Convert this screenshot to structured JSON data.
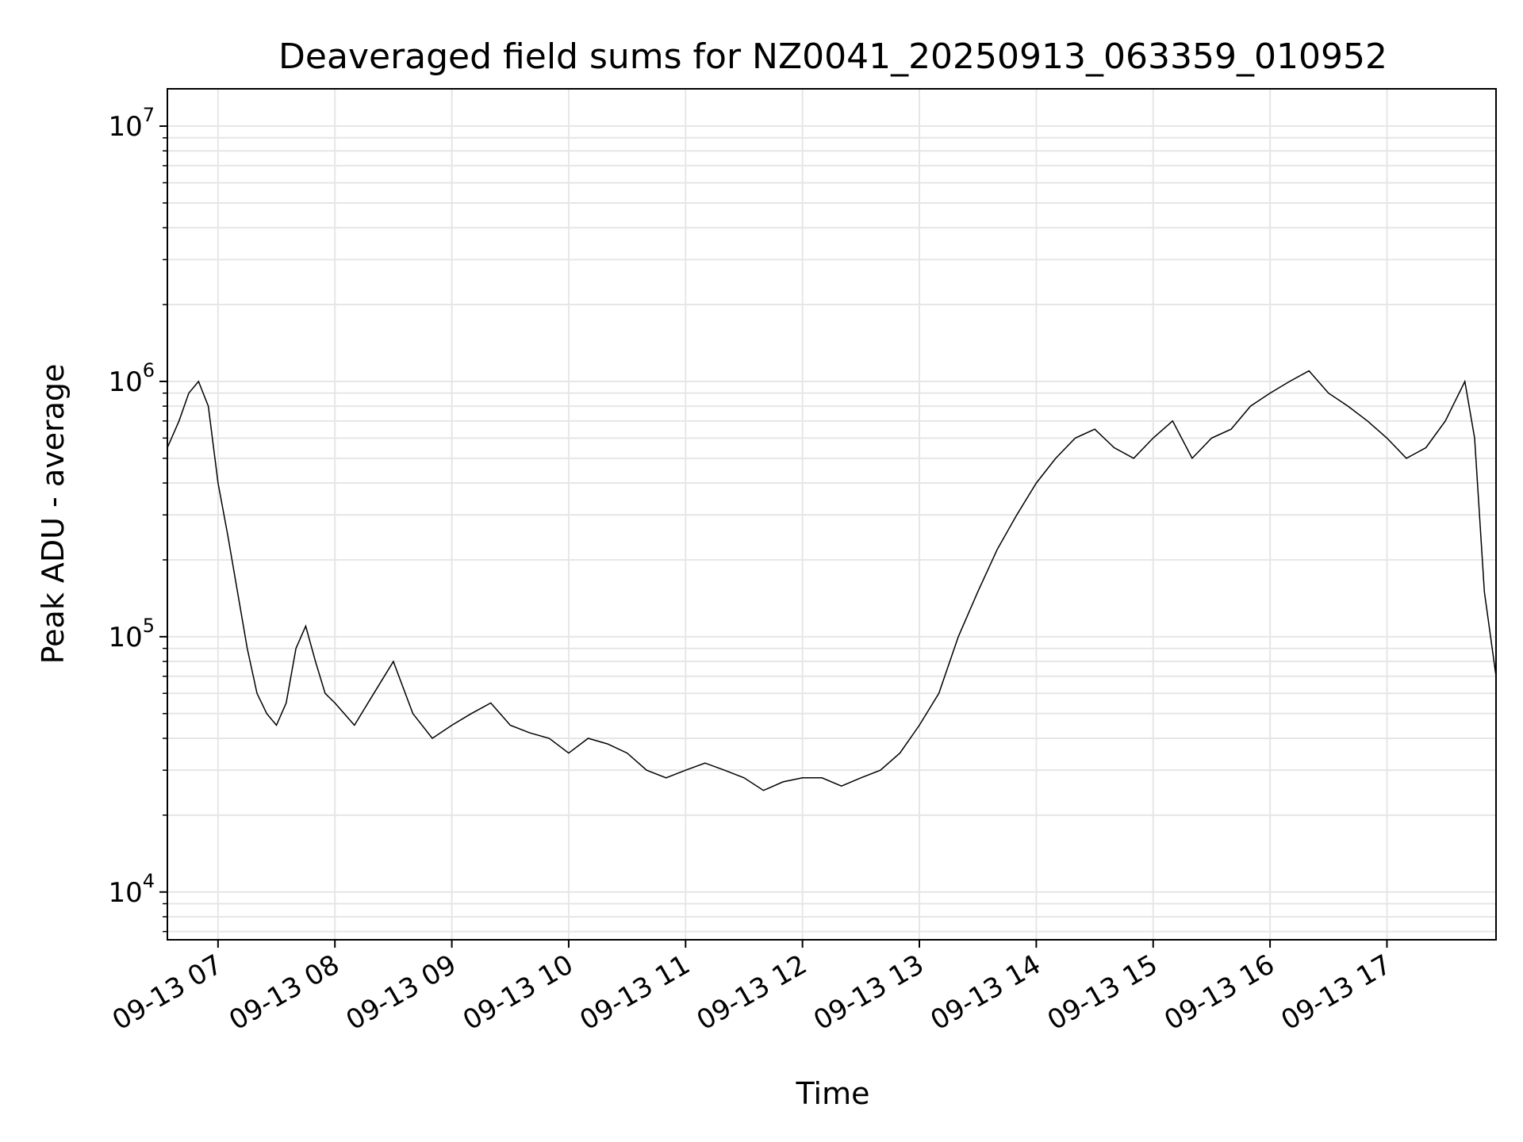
{
  "chart_data": {
    "type": "line",
    "title": "Deaveraged field sums for NZ0041_20250913_063359_010952",
    "xlabel": "Time",
    "ylabel": "Peak ADU - average",
    "yscale": "log",
    "ylim": [
      6500,
      14000000
    ],
    "xlim": [
      "2025-09-13 06:34",
      "2025-09-13 17:56"
    ],
    "grid": true,
    "line_color": "#000000",
    "x_ticks": [
      {
        "t": "2025-09-13 07:00",
        "label": "09-13 07"
      },
      {
        "t": "2025-09-13 08:00",
        "label": "09-13 08"
      },
      {
        "t": "2025-09-13 09:00",
        "label": "09-13 09"
      },
      {
        "t": "2025-09-13 10:00",
        "label": "09-13 10"
      },
      {
        "t": "2025-09-13 11:00",
        "label": "09-13 11"
      },
      {
        "t": "2025-09-13 12:00",
        "label": "09-13 12"
      },
      {
        "t": "2025-09-13 13:00",
        "label": "09-13 13"
      },
      {
        "t": "2025-09-13 14:00",
        "label": "09-13 14"
      },
      {
        "t": "2025-09-13 15:00",
        "label": "09-13 15"
      },
      {
        "t": "2025-09-13 16:00",
        "label": "09-13 16"
      },
      {
        "t": "2025-09-13 17:00",
        "label": "09-13 17"
      }
    ],
    "y_ticks": [
      {
        "value": 10000,
        "base": "10",
        "exp": "4"
      },
      {
        "value": 100000,
        "base": "10",
        "exp": "5"
      },
      {
        "value": 1000000,
        "base": "10",
        "exp": "6"
      },
      {
        "value": 10000000,
        "base": "10",
        "exp": "7"
      }
    ],
    "series": [
      {
        "x": [
          "2025-09-13 06:34",
          "2025-09-13 06:40",
          "2025-09-13 06:45",
          "2025-09-13 06:50",
          "2025-09-13 06:55",
          "2025-09-13 07:00",
          "2025-09-13 07:05",
          "2025-09-13 07:10",
          "2025-09-13 07:15",
          "2025-09-13 07:20",
          "2025-09-13 07:25",
          "2025-09-13 07:30",
          "2025-09-13 07:35",
          "2025-09-13 07:40",
          "2025-09-13 07:45",
          "2025-09-13 07:50",
          "2025-09-13 07:55",
          "2025-09-13 08:00",
          "2025-09-13 08:10",
          "2025-09-13 08:20",
          "2025-09-13 08:30",
          "2025-09-13 08:40",
          "2025-09-13 08:50",
          "2025-09-13 09:00",
          "2025-09-13 09:10",
          "2025-09-13 09:20",
          "2025-09-13 09:30",
          "2025-09-13 09:40",
          "2025-09-13 09:50",
          "2025-09-13 10:00",
          "2025-09-13 10:10",
          "2025-09-13 10:20",
          "2025-09-13 10:30",
          "2025-09-13 10:40",
          "2025-09-13 10:50",
          "2025-09-13 11:00",
          "2025-09-13 11:10",
          "2025-09-13 11:20",
          "2025-09-13 11:30",
          "2025-09-13 11:40",
          "2025-09-13 11:50",
          "2025-09-13 12:00",
          "2025-09-13 12:10",
          "2025-09-13 12:20",
          "2025-09-13 12:30",
          "2025-09-13 12:40",
          "2025-09-13 12:50",
          "2025-09-13 13:00",
          "2025-09-13 13:10",
          "2025-09-13 13:20",
          "2025-09-13 13:30",
          "2025-09-13 13:40",
          "2025-09-13 13:50",
          "2025-09-13 14:00",
          "2025-09-13 14:10",
          "2025-09-13 14:20",
          "2025-09-13 14:30",
          "2025-09-13 14:40",
          "2025-09-13 14:50",
          "2025-09-13 15:00",
          "2025-09-13 15:10",
          "2025-09-13 15:20",
          "2025-09-13 15:30",
          "2025-09-13 15:40",
          "2025-09-13 15:50",
          "2025-09-13 16:00",
          "2025-09-13 16:10",
          "2025-09-13 16:20",
          "2025-09-13 16:30",
          "2025-09-13 16:40",
          "2025-09-13 16:50",
          "2025-09-13 17:00",
          "2025-09-13 17:10",
          "2025-09-13 17:20",
          "2025-09-13 17:30",
          "2025-09-13 17:40",
          "2025-09-13 17:45",
          "2025-09-13 17:50",
          "2025-09-13 17:56"
        ],
        "y": [
          550000,
          700000,
          900000,
          1000000,
          800000,
          400000,
          250000,
          150000,
          90000,
          60000,
          50000,
          45000,
          55000,
          90000,
          110000,
          80000,
          60000,
          55000,
          45000,
          60000,
          80000,
          50000,
          40000,
          45000,
          50000,
          55000,
          45000,
          42000,
          40000,
          35000,
          40000,
          38000,
          35000,
          30000,
          28000,
          30000,
          32000,
          30000,
          28000,
          25000,
          27000,
          28000,
          28000,
          26000,
          28000,
          30000,
          35000,
          45000,
          60000,
          100000,
          150000,
          220000,
          300000,
          400000,
          500000,
          600000,
          650000,
          550000,
          500000,
          600000,
          700000,
          500000,
          600000,
          650000,
          800000,
          900000,
          1000000,
          1100000,
          900000,
          800000,
          700000,
          600000,
          500000,
          550000,
          700000,
          1000000,
          600000,
          150000,
          70000
        ]
      }
    ]
  }
}
